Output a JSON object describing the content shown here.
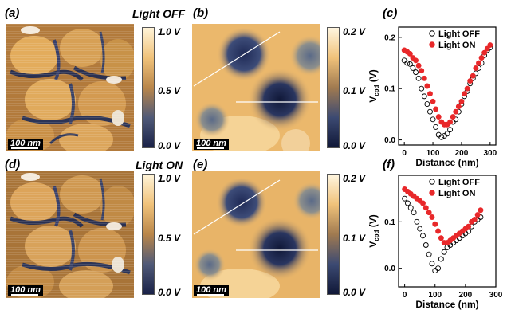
{
  "panels": {
    "a": {
      "label": "(a)",
      "title": "Light OFF",
      "scale": "100 nm",
      "ticks": [
        "1.0 V",
        "0.5 V",
        "0.0 V"
      ]
    },
    "b": {
      "label": "(b)",
      "scale": "100 nm",
      "ticks": [
        "0.2 V",
        "0.1 V",
        "0.0 V"
      ]
    },
    "c": {
      "label": "(c)"
    },
    "d": {
      "label": "(d)",
      "title": "Light ON",
      "scale": "100 nm",
      "ticks": [
        "1.0 V",
        "0.5 V",
        "0.0 V"
      ]
    },
    "e": {
      "label": "(e)",
      "scale": "100 nm",
      "ticks": [
        "0.2 V",
        "0.1 V",
        "0.0 V"
      ]
    },
    "f": {
      "label": "(f)"
    }
  },
  "colors": {
    "bright": "#f3c77c",
    "mid": "#b07a3a",
    "dark": "#1c2450",
    "mid_blue": "#4a5a7c",
    "on": "#e8282a",
    "off": "#000000"
  },
  "chart_data": [
    {
      "panel": "c",
      "type": "scatter",
      "xlabel": "Distance (nm)",
      "ylabel": "V_cpd (V)",
      "xlim": [
        -20,
        320
      ],
      "ylim": [
        -0.01,
        0.22
      ],
      "xticks": [
        "0",
        "100",
        "200",
        "300"
      ],
      "yticks": [
        "0.0",
        "0.1",
        "0.2"
      ],
      "legend_position": "top-right",
      "series": [
        {
          "name": "Light OFF",
          "marker": "open-circle",
          "x": [
            0,
            10,
            20,
            30,
            40,
            50,
            60,
            70,
            80,
            90,
            100,
            110,
            120,
            130,
            140,
            150,
            160,
            170,
            180,
            190,
            200,
            210,
            220,
            230,
            240,
            250,
            260,
            270,
            280,
            290,
            300
          ],
          "y": [
            0.155,
            0.15,
            0.148,
            0.14,
            0.132,
            0.12,
            0.1,
            0.085,
            0.07,
            0.055,
            0.04,
            0.025,
            0.01,
            0.005,
            0.008,
            0.012,
            0.02,
            0.035,
            0.04,
            0.055,
            0.07,
            0.085,
            0.095,
            0.11,
            0.12,
            0.13,
            0.14,
            0.15,
            0.165,
            0.175,
            0.18
          ]
        },
        {
          "name": "Light ON",
          "marker": "filled-circle",
          "x": [
            0,
            10,
            20,
            30,
            40,
            50,
            60,
            70,
            80,
            90,
            100,
            110,
            120,
            130,
            140,
            150,
            160,
            170,
            180,
            190,
            200,
            210,
            220,
            230,
            240,
            250,
            260,
            270,
            280,
            290,
            300
          ],
          "y": [
            0.175,
            0.172,
            0.168,
            0.16,
            0.155,
            0.145,
            0.135,
            0.12,
            0.105,
            0.09,
            0.075,
            0.06,
            0.045,
            0.035,
            0.03,
            0.03,
            0.035,
            0.045,
            0.055,
            0.065,
            0.075,
            0.09,
            0.1,
            0.115,
            0.125,
            0.14,
            0.15,
            0.16,
            0.17,
            0.178,
            0.185
          ]
        }
      ]
    },
    {
      "panel": "f",
      "type": "scatter",
      "xlabel": "Distance (nm)",
      "ylabel": "V_cpd (V)",
      "xlim": [
        -20,
        300
      ],
      "ylim": [
        -0.04,
        0.2
      ],
      "xticks": [
        "0",
        "100",
        "200",
        "300"
      ],
      "yticks": [
        "0.0",
        "0.1"
      ],
      "legend_position": "top-right",
      "series": [
        {
          "name": "Light OFF",
          "marker": "open-circle",
          "x": [
            0,
            10,
            20,
            30,
            40,
            50,
            60,
            70,
            80,
            90,
            100,
            110,
            120,
            130,
            140,
            150,
            160,
            170,
            180,
            190,
            200,
            210,
            220,
            230,
            240,
            250
          ],
          "y": [
            0.15,
            0.14,
            0.13,
            0.12,
            0.1,
            0.085,
            0.07,
            0.05,
            0.03,
            0.01,
            -0.005,
            0.0,
            0.02,
            0.035,
            0.045,
            0.05,
            0.055,
            0.06,
            0.065,
            0.07,
            0.075,
            0.08,
            0.09,
            0.1,
            0.105,
            0.11
          ]
        },
        {
          "name": "Light ON",
          "marker": "filled-circle",
          "x": [
            0,
            10,
            20,
            30,
            40,
            50,
            60,
            70,
            80,
            90,
            100,
            110,
            120,
            130,
            140,
            150,
            160,
            170,
            180,
            190,
            200,
            210,
            220,
            230,
            240,
            250
          ],
          "y": [
            0.17,
            0.165,
            0.16,
            0.155,
            0.15,
            0.145,
            0.14,
            0.13,
            0.12,
            0.11,
            0.095,
            0.08,
            0.065,
            0.055,
            0.055,
            0.06,
            0.065,
            0.07,
            0.075,
            0.08,
            0.085,
            0.09,
            0.1,
            0.105,
            0.115,
            0.125
          ]
        }
      ]
    }
  ]
}
